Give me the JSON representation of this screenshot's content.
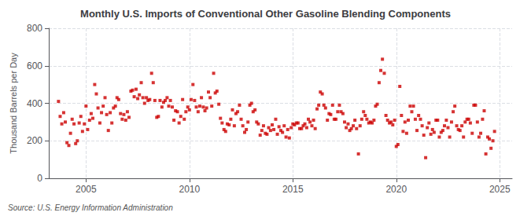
{
  "chart_data": {
    "type": "scatter",
    "title": "Monthly U.S. Imports of Conventional Other Gasoline Blending Components",
    "ylabel": "Thousand Barrels per Day",
    "annotations": [
      "Source: U.S. Energy Information Administration"
    ],
    "color": "#cc0000",
    "marker": "square",
    "grid": true,
    "xlim": [
      2003.2,
      2025.6
    ],
    "xticks": [
      2005,
      2010,
      2015,
      2020,
      2025
    ],
    "ylim": [
      0,
      800
    ],
    "yticks": [
      0,
      200,
      400,
      600,
      800
    ],
    "x": [
      2003.67,
      2003.75,
      2003.83,
      2003.92,
      2004.0,
      2004.08,
      2004.17,
      2004.25,
      2004.33,
      2004.42,
      2004.5,
      2004.58,
      2004.67,
      2004.75,
      2004.83,
      2004.92,
      2005.0,
      2005.08,
      2005.17,
      2005.25,
      2005.33,
      2005.42,
      2005.5,
      2005.58,
      2005.67,
      2005.75,
      2005.83,
      2005.92,
      2006.0,
      2006.08,
      2006.17,
      2006.25,
      2006.33,
      2006.42,
      2006.5,
      2006.58,
      2006.67,
      2006.75,
      2006.83,
      2006.92,
      2007.0,
      2007.08,
      2007.17,
      2007.25,
      2007.33,
      2007.42,
      2007.5,
      2007.58,
      2007.67,
      2007.75,
      2007.83,
      2007.92,
      2008.0,
      2008.08,
      2008.17,
      2008.25,
      2008.33,
      2008.42,
      2008.5,
      2008.58,
      2008.67,
      2008.75,
      2008.83,
      2008.92,
      2009.0,
      2009.08,
      2009.17,
      2009.25,
      2009.33,
      2009.42,
      2009.5,
      2009.58,
      2009.67,
      2009.75,
      2009.83,
      2009.92,
      2010.0,
      2010.08,
      2010.17,
      2010.25,
      2010.33,
      2010.42,
      2010.5,
      2010.58,
      2010.67,
      2010.75,
      2010.83,
      2010.92,
      2011.0,
      2011.08,
      2011.17,
      2011.25,
      2011.33,
      2011.42,
      2011.5,
      2011.58,
      2011.67,
      2011.75,
      2011.83,
      2011.92,
      2012.0,
      2012.08,
      2012.17,
      2012.25,
      2012.33,
      2012.42,
      2012.5,
      2012.58,
      2012.67,
      2012.75,
      2012.83,
      2012.92,
      2013.0,
      2013.08,
      2013.17,
      2013.25,
      2013.33,
      2013.42,
      2013.5,
      2013.58,
      2013.67,
      2013.75,
      2013.83,
      2013.92,
      2014.0,
      2014.08,
      2014.17,
      2014.25,
      2014.33,
      2014.42,
      2014.5,
      2014.58,
      2014.67,
      2014.75,
      2014.83,
      2014.92,
      2015.0,
      2015.08,
      2015.17,
      2015.25,
      2015.33,
      2015.42,
      2015.5,
      2015.58,
      2015.67,
      2015.75,
      2015.83,
      2015.92,
      2016.0,
      2016.08,
      2016.17,
      2016.25,
      2016.33,
      2016.42,
      2016.5,
      2016.58,
      2016.67,
      2016.75,
      2016.83,
      2016.92,
      2017.0,
      2017.08,
      2017.17,
      2017.25,
      2017.33,
      2017.42,
      2017.5,
      2017.58,
      2017.67,
      2017.75,
      2017.83,
      2017.92,
      2018.0,
      2018.08,
      2018.17,
      2018.25,
      2018.33,
      2018.42,
      2018.5,
      2018.58,
      2018.67,
      2018.75,
      2018.83,
      2018.92,
      2019.0,
      2019.08,
      2019.17,
      2019.25,
      2019.33,
      2019.42,
      2019.5,
      2019.58,
      2019.67,
      2019.75,
      2019.83,
      2019.92,
      2020.0,
      2020.08,
      2020.17,
      2020.25,
      2020.33,
      2020.42,
      2020.5,
      2020.58,
      2020.67,
      2020.75,
      2020.83,
      2020.92,
      2021.0,
      2021.08,
      2021.17,
      2021.25,
      2021.33,
      2021.42,
      2021.5,
      2021.58,
      2021.67,
      2021.75,
      2021.83,
      2021.92,
      2022.0,
      2022.08,
      2022.17,
      2022.25,
      2022.33,
      2022.42,
      2022.5,
      2022.58,
      2022.67,
      2022.75,
      2022.83,
      2022.92,
      2023.0,
      2023.08,
      2023.17,
      2023.25,
      2023.33,
      2023.42,
      2023.5,
      2023.58,
      2023.67,
      2023.75,
      2023.83,
      2023.92,
      2024.0,
      2024.08,
      2024.17,
      2024.25,
      2024.33,
      2024.42,
      2024.5,
      2024.58,
      2024.67,
      2024.75
    ],
    "values": [
      410,
      330,
      290,
      350,
      300,
      190,
      175,
      240,
      315,
      290,
      185,
      200,
      295,
      330,
      250,
      290,
      385,
      260,
      310,
      345,
      320,
      500,
      450,
      375,
      295,
      350,
      385,
      430,
      340,
      255,
      350,
      295,
      375,
      385,
      430,
      420,
      345,
      315,
      340,
      310,
      355,
      325,
      465,
      470,
      435,
      475,
      425,
      445,
      510,
      430,
      400,
      430,
      415,
      420,
      560,
      510,
      415,
      325,
      330,
      415,
      380,
      405,
      415,
      430,
      385,
      415,
      380,
      310,
      360,
      355,
      295,
      330,
      420,
      315,
      355,
      380,
      365,
      420,
      500,
      415,
      380,
      355,
      385,
      430,
      380,
      360,
      375,
      460,
      430,
      385,
      560,
      455,
      465,
      395,
      320,
      295,
      260,
      250,
      290,
      285,
      315,
      365,
      280,
      345,
      355,
      390,
      315,
      280,
      245,
      260,
      300,
      390,
      400,
      355,
      365,
      300,
      290,
      230,
      255,
      280,
      240,
      235,
      270,
      255,
      285,
      260,
      315,
      235,
      275,
      255,
      245,
      280,
      220,
      260,
      215,
      270,
      290,
      285,
      295,
      295,
      265,
      265,
      280,
      290,
      270,
      315,
      300,
      280,
      310,
      265,
      370,
      390,
      460,
      450,
      390,
      375,
      310,
      345,
      340,
      390,
      315,
      315,
      355,
      390,
      355,
      345,
      300,
      270,
      290,
      255,
      265,
      280,
      310,
      265,
      130,
      280,
      315,
      355,
      335,
      315,
      295,
      300,
      295,
      310,
      385,
      395,
      510,
      575,
      635,
      560,
      335,
      310,
      295,
      300,
      285,
      310,
      170,
      180,
      490,
      335,
      250,
      300,
      240,
      310,
      385,
      355,
      385,
      315,
      255,
      335,
      315,
      280,
      230,
      110,
      270,
      295,
      235,
      260,
      245,
      310,
      310,
      220,
      245,
      255,
      280,
      310,
      270,
      220,
      300,
      355,
      385,
      280,
      260,
      255,
      280,
      220,
      300,
      315,
      315,
      295,
      240,
      390,
      390,
      300,
      220,
      240,
      315,
      360,
      130,
      220,
      210,
      160,
      200,
      250
    ]
  }
}
